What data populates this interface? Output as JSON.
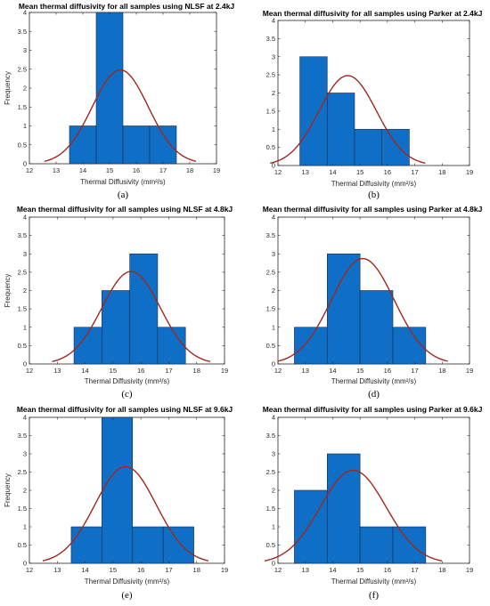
{
  "colors": {
    "bar": "#0f6fc6",
    "bar_edge": "#1f2a44",
    "curve": "#a0281e",
    "axis": "#262626"
  },
  "chart_data": [
    {
      "type": "bar",
      "panel": "(a)",
      "title": "Mean thermal diffusivity for all samples using NLSF at 2.4kJ",
      "xlabel": "Thermal Diffusivity (mm²/s)",
      "ylabel": "Frequency",
      "xlim": [
        12,
        19
      ],
      "ylim": [
        0,
        4
      ],
      "xticks": [
        12,
        13,
        14,
        15,
        16,
        17,
        18,
        19
      ],
      "yticks": [
        0,
        0.5,
        1,
        1.5,
        2,
        2.5,
        3,
        3.5,
        4
      ],
      "bins": [
        [
          13.5,
          14.5,
          1
        ],
        [
          14.5,
          15.5,
          4
        ],
        [
          15.5,
          16.5,
          1
        ],
        [
          16.5,
          17.5,
          1
        ]
      ],
      "fit": {
        "mean": 15.4,
        "peak": 2.48,
        "sigma": 1.05
      }
    },
    {
      "type": "bar",
      "panel": "(b)",
      "title": "Mean thermal diffusivity for all samples using Parker at 2.4kJ",
      "xlabel": "Thermal Diffusivity (mm²/s)",
      "ylabel": "",
      "xlim": [
        12,
        19
      ],
      "ylim": [
        0,
        4
      ],
      "xticks": [
        12,
        13,
        14,
        15,
        16,
        17,
        18,
        19
      ],
      "yticks": [
        0,
        0.5,
        1,
        1.5,
        2,
        2.5,
        3,
        3.5,
        4
      ],
      "bins": [
        [
          12.8,
          13.8,
          3
        ],
        [
          13.8,
          14.8,
          2
        ],
        [
          14.8,
          15.8,
          1
        ],
        [
          15.8,
          16.8,
          1
        ]
      ],
      "fit": {
        "mean": 14.55,
        "peak": 2.48,
        "sigma": 1.05
      }
    },
    {
      "type": "bar",
      "panel": "(c)",
      "title": "Mean thermal diffusivity for all samples using NLSF at 4.8kJ",
      "xlabel": "Thermal Diffusivity (mm²/s)",
      "ylabel": "Frequency",
      "xlim": [
        12,
        19
      ],
      "ylim": [
        0,
        4
      ],
      "xticks": [
        12,
        13,
        14,
        15,
        16,
        17,
        18,
        19
      ],
      "yticks": [
        0,
        0.5,
        1,
        1.5,
        2,
        2.5,
        3,
        3.5,
        4
      ],
      "bins": [
        [
          13.6,
          14.6,
          1
        ],
        [
          14.6,
          15.6,
          2
        ],
        [
          15.6,
          16.6,
          3
        ],
        [
          16.6,
          17.6,
          1
        ]
      ],
      "fit": {
        "mean": 15.65,
        "peak": 2.52,
        "sigma": 1.05
      }
    },
    {
      "type": "bar",
      "panel": "(d)",
      "title": "Mean thermal diffusivity for all samples using Parker at 4.8kJ",
      "xlabel": "Thermal Diffusivity (mm²/s)",
      "ylabel": "",
      "xlim": [
        12,
        19
      ],
      "ylim": [
        0,
        4
      ],
      "xticks": [
        12,
        13,
        14,
        15,
        16,
        17,
        18,
        19
      ],
      "yticks": [
        0,
        0.5,
        1,
        1.5,
        2,
        2.5,
        3,
        3.5,
        4
      ],
      "bins": [
        [
          12.6,
          13.8,
          1
        ],
        [
          13.8,
          15.0,
          3
        ],
        [
          15.0,
          16.2,
          2
        ],
        [
          16.2,
          17.4,
          1
        ]
      ],
      "fit": {
        "mean": 15.1,
        "peak": 2.87,
        "sigma": 1.15
      }
    },
    {
      "type": "bar",
      "panel": "(e)",
      "title": "Mean thermal diffusivity for all samples using NLSF at 9.6kJ",
      "xlabel": "Thermal Diffusivity (mm²/s)",
      "ylabel": "Frequency",
      "xlim": [
        12,
        19
      ],
      "ylim": [
        0,
        4
      ],
      "xticks": [
        12,
        13,
        14,
        15,
        16,
        17,
        18,
        19
      ],
      "yticks": [
        0,
        0.5,
        1,
        1.5,
        2,
        2.5,
        3,
        3.5,
        4
      ],
      "bins": [
        [
          13.5,
          14.6,
          1
        ],
        [
          14.6,
          15.7,
          4
        ],
        [
          15.7,
          16.8,
          1
        ],
        [
          16.8,
          17.9,
          1
        ]
      ],
      "fit": {
        "mean": 15.45,
        "peak": 2.65,
        "sigma": 1.1
      }
    },
    {
      "type": "bar",
      "panel": "(f)",
      "title": "Mean thermal diffusivity for all samples using Parker at 9.6kJ",
      "xlabel": "Thermal Diffusivity (mm²/s)",
      "ylabel": "",
      "xlim": [
        12,
        19
      ],
      "ylim": [
        0,
        4
      ],
      "xticks": [
        12,
        13,
        14,
        15,
        16,
        17,
        18,
        19
      ],
      "yticks": [
        0,
        0.5,
        1,
        1.5,
        2,
        2.5,
        3,
        3.5,
        4
      ],
      "bins": [
        [
          12.6,
          13.8,
          2
        ],
        [
          13.8,
          15.0,
          3
        ],
        [
          15.0,
          16.2,
          1
        ],
        [
          16.2,
          17.4,
          1
        ]
      ],
      "fit": {
        "mean": 14.75,
        "peak": 2.55,
        "sigma": 1.2
      }
    }
  ]
}
